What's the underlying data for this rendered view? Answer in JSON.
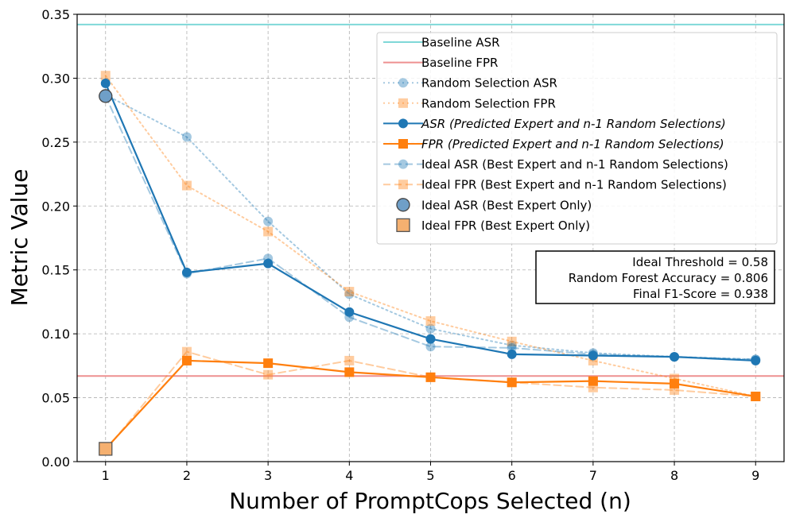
{
  "chart_data": {
    "type": "line",
    "xlabel": "Number of PromptCops Selected (n)",
    "ylabel": "Metric Value",
    "xlim": [
      0.65,
      9.35
    ],
    "ylim": [
      0,
      0.35
    ],
    "x_ticks": [
      1,
      2,
      3,
      4,
      5,
      6,
      7,
      8,
      9
    ],
    "y_ticks": [
      "0.00",
      "0.05",
      "0.10",
      "0.15",
      "0.20",
      "0.25",
      "0.30",
      "0.35"
    ],
    "grid": true,
    "baselines": [
      {
        "name": "Baseline ASR",
        "value": 0.342,
        "color": "#7fd8d8"
      },
      {
        "name": "Baseline FPR",
        "value": 0.067,
        "color": "#ee9090"
      }
    ],
    "series": [
      {
        "name": "Random Selection ASR",
        "style": "dotted",
        "marker": "circle",
        "color": "#1f77b4",
        "opacity": 0.4,
        "italic": false,
        "x": [
          1,
          2,
          3,
          4,
          5,
          6,
          7,
          8,
          9
        ],
        "values": [
          0.287,
          0.254,
          0.188,
          0.131,
          0.104,
          0.091,
          0.085,
          0.082,
          0.08
        ]
      },
      {
        "name": "Random Selection FPR",
        "style": "dotted",
        "marker": "square",
        "color": "#ff7f0e",
        "opacity": 0.4,
        "italic": false,
        "x": [
          1,
          2,
          3,
          4,
          5,
          6,
          7,
          8,
          9
        ],
        "values": [
          0.302,
          0.216,
          0.18,
          0.133,
          0.11,
          0.094,
          0.079,
          0.065,
          0.051
        ]
      },
      {
        "name": "ASR (Predicted Expert and n-1 Random Selections)",
        "style": "solid",
        "marker": "circle",
        "color": "#1f77b4",
        "opacity": 1,
        "italic": true,
        "x": [
          1,
          2,
          3,
          4,
          5,
          6,
          7,
          8,
          9
        ],
        "values": [
          0.296,
          0.148,
          0.155,
          0.117,
          0.096,
          0.084,
          0.083,
          0.082,
          0.079
        ]
      },
      {
        "name": "FPR (Predicted Expert and n-1 Random Selections)",
        "style": "solid",
        "marker": "square",
        "color": "#ff7f0e",
        "opacity": 1,
        "italic": true,
        "x": [
          1,
          2,
          3,
          4,
          5,
          6,
          7,
          8,
          9
        ],
        "values": [
          0.01,
          0.079,
          0.077,
          0.07,
          0.066,
          0.062,
          0.063,
          0.061,
          0.051
        ]
      },
      {
        "name": "Ideal ASR (Best Expert and n-1 Random Selections)",
        "style": "dashed",
        "marker": "circle",
        "color": "#1f77b4",
        "opacity": 0.4,
        "italic": false,
        "x": [
          1,
          2,
          3,
          4,
          5,
          6,
          7,
          8,
          9
        ],
        "values": [
          0.286,
          0.147,
          0.159,
          0.113,
          0.09,
          0.089,
          0.084,
          0.082,
          0.08
        ]
      },
      {
        "name": "Ideal FPR (Best Expert and n-1 Random Selections)",
        "style": "dashed",
        "marker": "square",
        "color": "#ff7f0e",
        "opacity": 0.4,
        "italic": false,
        "x": [
          1,
          2,
          3,
          4,
          5,
          6,
          7,
          8,
          9
        ],
        "values": [
          0.009,
          0.086,
          0.068,
          0.079,
          0.066,
          0.062,
          0.058,
          0.056,
          0.051
        ]
      }
    ],
    "single_points": [
      {
        "name": "Ideal ASR (Best Expert Only)",
        "marker": "circle",
        "x": 1,
        "value": 0.286,
        "fill": "#6f9fc8",
        "edge": "#444444"
      },
      {
        "name": "Ideal FPR (Best Expert Only)",
        "marker": "square",
        "x": 1,
        "value": 0.01,
        "fill": "#f5b070",
        "edge": "#555555"
      }
    ],
    "legend_position": "top-right",
    "stats_box": [
      "Ideal Threshold = 0.58",
      "Random Forest Accuracy = 0.806",
      "Final F1-Score = 0.938"
    ]
  }
}
